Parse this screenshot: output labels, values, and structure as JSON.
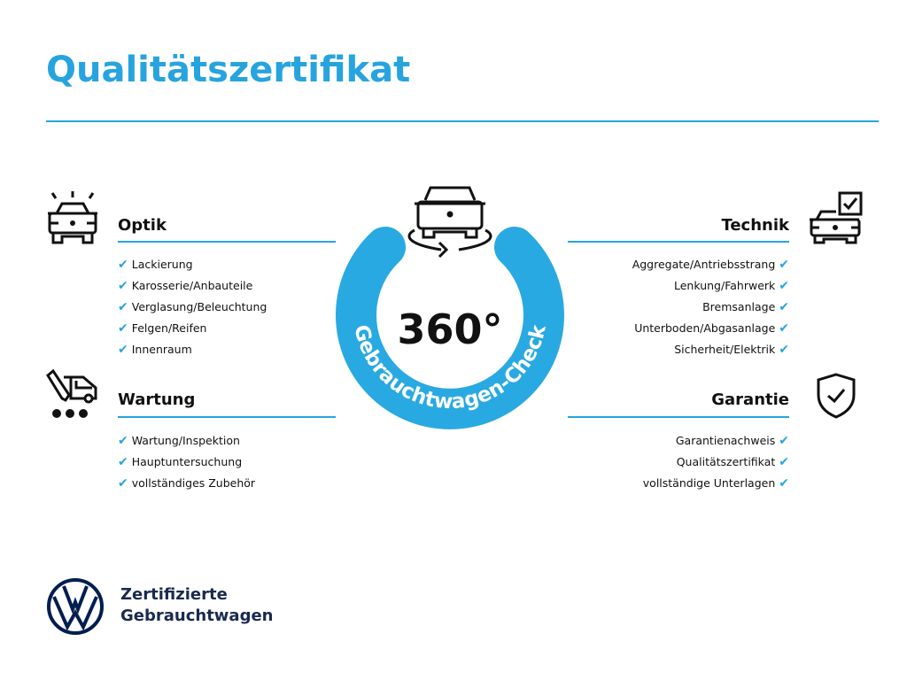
{
  "title": "Qualitätszertifikat",
  "center": {
    "degrees": "360°",
    "ring_label": "Gebrauchtwagen-Check"
  },
  "sections": {
    "optik": {
      "heading": "Optik",
      "icon": "car-lights-icon",
      "items": [
        "Lackierung",
        "Karosserie/Anbauteile",
        "Verglasung/Beleuchtung",
        "Felgen/Reifen",
        "Innenraum"
      ]
    },
    "wartung": {
      "heading": "Wartung",
      "icon": "service-van-icon",
      "items": [
        "Wartung/Inspektion",
        "Hauptuntersuchung",
        "vollständiges Zubehör"
      ]
    },
    "technik": {
      "heading": "Technik",
      "icon": "car-checklist-icon",
      "items": [
        "Aggregate/Antriebsstrang",
        "Lenkung/Fahrwerk",
        "Bremsanlage",
        "Unterboden/Abgasanlage",
        "Sicherheit/Elektrik"
      ]
    },
    "garantie": {
      "heading": "Garantie",
      "icon": "shield-check-icon",
      "items": [
        "Garantienachweis",
        "Qualitätszertifikat",
        "vollständige Unterlagen"
      ]
    }
  },
  "check_mark": "✔",
  "footer": {
    "line1": "Zertifizierte",
    "line2": "Gebrauchtwagen",
    "logo": "VW"
  },
  "colors": {
    "accent": "#27a4de",
    "brand_navy": "#001e50",
    "text": "#111111"
  }
}
